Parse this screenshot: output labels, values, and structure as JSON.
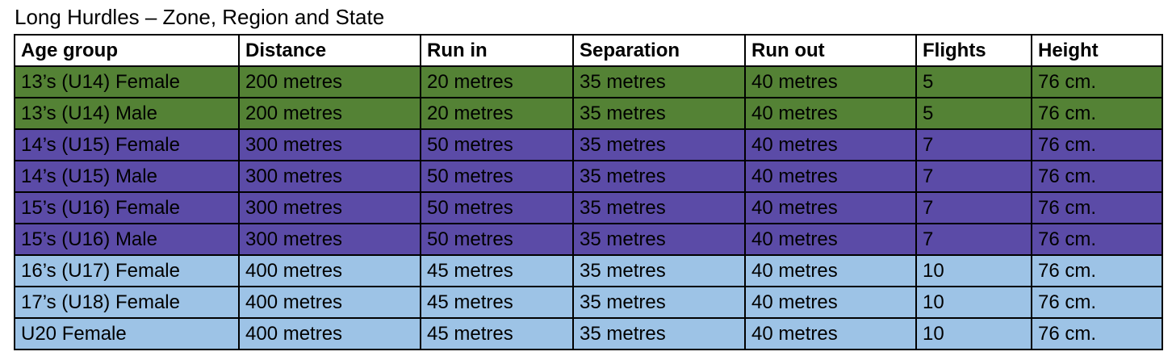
{
  "caption": "Long Hurdles – Zone, Region and State",
  "table": {
    "headers": [
      "Age group",
      "Distance",
      "Run in",
      "Separation",
      "Run out",
      "Flights",
      "Height"
    ],
    "rows": [
      {
        "band": "green",
        "cells": [
          "13’s (U14) Female",
          "200 metres",
          "20 metres",
          "35 metres",
          "40 metres",
          "5",
          "76 cm."
        ]
      },
      {
        "band": "green",
        "cells": [
          "13’s (U14) Male",
          "200 metres",
          "20 metres",
          "35 metres",
          "40 metres",
          "5",
          "76 cm."
        ]
      },
      {
        "band": "purple",
        "cells": [
          "14’s (U15) Female",
          "300 metres",
          "50 metres",
          "35 metres",
          "40 metres",
          "7",
          "76 cm."
        ]
      },
      {
        "band": "purple",
        "cells": [
          "14’s (U15) Male",
          "300 metres",
          "50 metres",
          "35 metres",
          "40 metres",
          "7",
          "76 cm."
        ]
      },
      {
        "band": "purple",
        "cells": [
          "15’s (U16) Female",
          "300 metres",
          "50 metres",
          "35 metres",
          "40 metres",
          "7",
          "76 cm."
        ]
      },
      {
        "band": "purple",
        "cells": [
          "15’s (U16) Male",
          "300 metres",
          "50 metres",
          "35 metres",
          "40 metres",
          "7",
          "76 cm."
        ]
      },
      {
        "band": "blue",
        "cells": [
          "16’s (U17) Female",
          "400 metres",
          "45 metres",
          "35 metres",
          "40 metres",
          "10",
          "76 cm."
        ]
      },
      {
        "band": "blue",
        "cells": [
          "17’s (U18) Female",
          "400 metres",
          "45 metres",
          "35 metres",
          "40 metres",
          "10",
          "76 cm."
        ]
      },
      {
        "band": "blue",
        "cells": [
          "U20 Female",
          "400 metres",
          "45 metres",
          "35 metres",
          "40 metres",
          "10",
          "76 cm."
        ]
      }
    ]
  },
  "colors": {
    "green": "#548235",
    "purple": "#5b4ba7",
    "blue": "#9dc3e6",
    "border": "#000000"
  }
}
